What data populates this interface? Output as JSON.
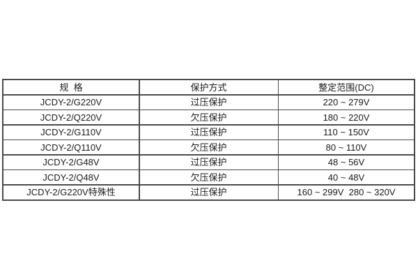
{
  "colors": {
    "background": "#ffffff",
    "border": "#4a4a4a",
    "text": "#1a1a1a"
  },
  "table": {
    "headers": [
      "规  格",
      "保护方式",
      "整定范围(DC)"
    ],
    "rows": [
      {
        "spec": "JCDY-2/G220V",
        "protection": "过压保护",
        "range": "220 ~ 279V"
      },
      {
        "spec": "JCDY-2/Q220V",
        "protection": "欠压保护",
        "range": "180 ~ 220V"
      },
      {
        "spec": "JCDY-2/G110V",
        "protection": "过压保护",
        "range": "110 ~ 150V"
      },
      {
        "spec": "JCDY-2/Q110V",
        "protection": "欠压保护",
        "range": "80 ~ 110V"
      },
      {
        "spec": "JCDY-2/G48V",
        "protection": "过压保护",
        "range": "48 ~ 56V"
      },
      {
        "spec": "JCDY-2/Q48V",
        "protection": "欠压保护",
        "range": "40 ~ 48V"
      },
      {
        "spec": "JCDY-2/G220V特殊性",
        "protection": "过压保护",
        "range": "160 ~ 299V  280 ~ 320V"
      }
    ]
  }
}
